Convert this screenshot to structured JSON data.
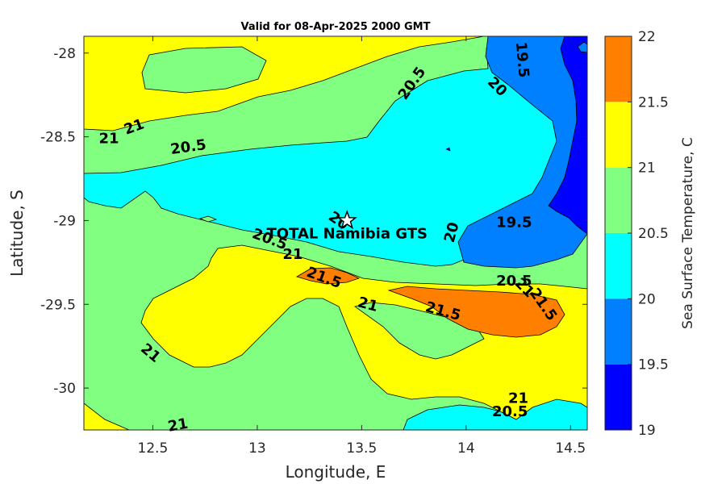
{
  "chart_data": {
    "type": "heatmap",
    "title": "Valid for 08-Apr-2025 2000 GMT",
    "xlabel": "Longitude, E",
    "ylabel": "Latitude, S",
    "xlim": [
      12.17,
      14.58
    ],
    "ylim": [
      -30.25,
      -27.9
    ],
    "x_ticks": [
      12.5,
      13,
      13.5,
      14,
      14.5
    ],
    "x_tick_labels": [
      "12.5",
      "13",
      "13.5",
      "14",
      "14.5"
    ],
    "y_ticks": [
      -28,
      -28.5,
      -29,
      -29.5,
      -30
    ],
    "y_tick_labels": [
      "-28",
      "-28.5",
      "-29",
      "-29.5",
      "-30"
    ],
    "colorbar": {
      "label": "Sea Surface Temperature, C",
      "levels": [
        19,
        19.5,
        20,
        20.5,
        21,
        21.5,
        22
      ],
      "level_labels": [
        "19",
        "19.5",
        "20",
        "20.5",
        "21",
        "21.5",
        "22"
      ],
      "colors": [
        "#0000ff",
        "#0080ff",
        "#00ffff",
        "#80ff80",
        "#ffff00",
        "#ff8000"
      ]
    },
    "contour_labels": [
      {
        "text": "21",
        "lon": 12.29,
        "lat": -28.51,
        "angle": 0
      },
      {
        "text": "21",
        "lon": 12.41,
        "lat": -28.44,
        "angle": -20
      },
      {
        "text": "20.5",
        "lon": 12.67,
        "lat": -28.56,
        "angle": -8
      },
      {
        "text": "20.5",
        "lon": 13.74,
        "lat": -28.18,
        "angle": -55
      },
      {
        "text": "20",
        "lon": 14.15,
        "lat": -28.2,
        "angle": 45
      },
      {
        "text": "19.5",
        "lon": 14.27,
        "lat": -28.04,
        "angle": 85
      },
      {
        "text": "19.5",
        "lon": 14.23,
        "lat": -29.01,
        "angle": 0
      },
      {
        "text": "20",
        "lon": 13.93,
        "lat": -29.07,
        "angle": -75
      },
      {
        "text": "20",
        "lon": 13.39,
        "lat": -29.0,
        "angle": 35
      },
      {
        "text": "20.5",
        "lon": 13.06,
        "lat": -29.11,
        "angle": 20
      },
      {
        "text": "21",
        "lon": 13.17,
        "lat": -29.2,
        "angle": 0
      },
      {
        "text": "21.5",
        "lon": 13.32,
        "lat": -29.34,
        "angle": 20
      },
      {
        "text": "21",
        "lon": 13.53,
        "lat": -29.5,
        "angle": 15
      },
      {
        "text": "21.5",
        "lon": 13.89,
        "lat": -29.54,
        "angle": 15
      },
      {
        "text": "20.5",
        "lon": 14.23,
        "lat": -29.36,
        "angle": 0
      },
      {
        "text": "21",
        "lon": 14.28,
        "lat": -29.4,
        "angle": 45
      },
      {
        "text": "21.5",
        "lon": 14.37,
        "lat": -29.5,
        "angle": 55
      },
      {
        "text": "21",
        "lon": 12.49,
        "lat": -29.79,
        "angle": 40
      },
      {
        "text": "21",
        "lon": 14.25,
        "lat": -30.06,
        "angle": 0
      },
      {
        "text": "20.5",
        "lon": 14.21,
        "lat": -30.14,
        "angle": 0
      },
      {
        "text": "21",
        "lon": 12.62,
        "lat": -30.22,
        "angle": -10
      }
    ],
    "station": {
      "name": "TOTAL Namibia GTS",
      "lon": 13.43,
      "lat": -29.0
    }
  }
}
